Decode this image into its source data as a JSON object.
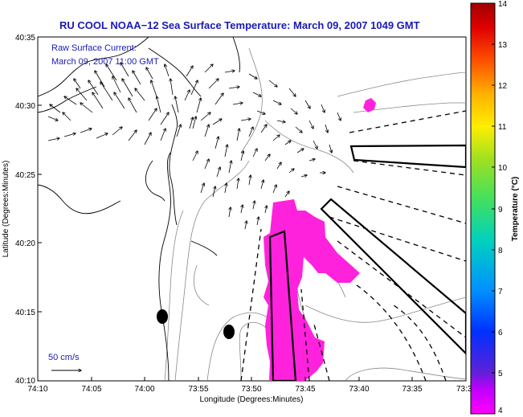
{
  "title": "RU COOL  NOAA−12  Sea Surface Temperature:  March 09, 2007 1049 GMT",
  "note": {
    "line1": "Raw Surface Current:",
    "line2": "March 09, 2007 11:00 GMT"
  },
  "scale_label": "50 cm/s",
  "axes": {
    "xlabel": "Longitude (Degrees:Minutes)",
    "ylabel": "Latitude (Degrees:Minutes)",
    "xticks": [
      "74:10",
      "74:05",
      "74:00",
      "73:55",
      "73:50",
      "73:45",
      "73:40",
      "73:35",
      "73:3"
    ],
    "yticks": [
      "40:35",
      "40:30",
      "40:25",
      "40:20",
      "40:15",
      "40:10"
    ]
  },
  "colorbar": {
    "label": "Temperature (°C)",
    "ticks": [
      "14",
      "13",
      "12",
      "11",
      "10",
      "9",
      "8",
      "7",
      "6",
      "5",
      "4"
    ],
    "min": 4,
    "max": 14
  },
  "colors": {
    "title": "#1a1ab4",
    "sst_patch": "#ff22dd",
    "land": "#000000"
  }
}
